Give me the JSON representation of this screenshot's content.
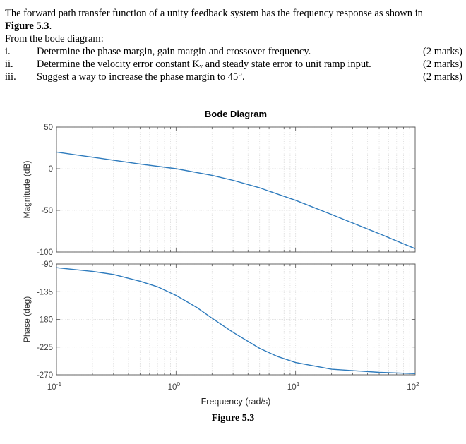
{
  "question": {
    "intro_1": "The forward path transfer function of a unity feedback system has the frequency response as shown in",
    "figure_ref": "Figure 5.3",
    "from_text": "From the bode diagram:",
    "items": [
      {
        "num": "i.",
        "text": "Determine the phase margin, gain margin and crossover frequency.",
        "marks": "(2 marks)"
      },
      {
        "num": "ii.",
        "text": "Determine the velocity error constant Kᵥ and steady state error to unit ramp input.",
        "marks": "(2 marks)"
      },
      {
        "num": "iii.",
        "text": "Suggest a way to increase the phase margin to 45°.",
        "marks": "(2 marks)"
      }
    ]
  },
  "figure_caption": "Figure 5.3",
  "chart_data": {
    "type": "line",
    "title": "Bode Diagram",
    "xlabel": "Frequency  (rad/s)",
    "x_scale": "log",
    "x_ticks": [
      "10^-1",
      "10^0",
      "10^1",
      "10^2"
    ],
    "xlim": [
      0.1,
      100
    ],
    "line_color": "#2e7bbd",
    "grid": "on",
    "magnitude": {
      "ylabel": "Magnitude (dB)",
      "ylim": [
        -100,
        50
      ],
      "yticks": [
        50,
        0,
        -50,
        -100
      ],
      "x": [
        0.1,
        0.2,
        0.5,
        1,
        2,
        3,
        5,
        10,
        20,
        50,
        100
      ],
      "values": [
        20,
        13.8,
        5.6,
        0,
        -8,
        -14,
        -23,
        -38,
        -55,
        -78,
        -96
      ]
    },
    "phase": {
      "ylabel": "Phase (deg)",
      "ylim": [
        -270,
        -90
      ],
      "yticks": [
        -90,
        -135,
        -180,
        -225,
        -270
      ],
      "x": [
        0.1,
        0.2,
        0.3,
        0.5,
        0.7,
        1,
        1.5,
        2,
        3,
        5,
        7,
        10,
        20,
        50,
        100
      ],
      "values": [
        -96,
        -102,
        -107,
        -118,
        -127,
        -141,
        -161,
        -178,
        -201,
        -227,
        -240,
        -250,
        -261,
        -266,
        -268
      ]
    }
  }
}
